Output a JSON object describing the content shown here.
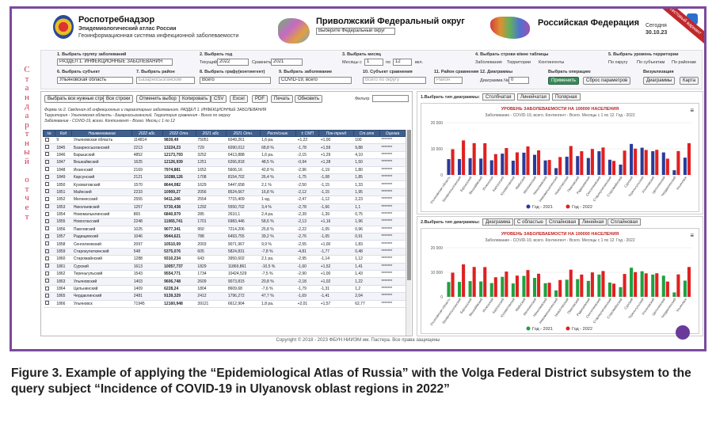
{
  "header": {
    "org_title": "Роспотребнадзор",
    "org_sub1": "Эпидемиологический атлас России",
    "org_sub2": "Геоинформационная система инфекционной заболеваемости",
    "district_title": "Приволжский Федеральный округ",
    "district_select": "Выберите Федеральный округ",
    "country_title": "Российская Федерация",
    "date_label": "Сегодня",
    "date_value": "30.10.23",
    "ribbon": "Тестовый вариант"
  },
  "filters": {
    "f1_label": "1. Выбрать группу заболеваний",
    "f1_value": "РАЗДЕЛ 1. ИНФЕКЦИОННЫЕ ЗАБОЛЕВАНИЯ",
    "f2_label": "2. Выбрать год",
    "f2_value": "Текущий",
    "f2_year": "2022",
    "f2_compare_label": "Сравнить",
    "f2_compare": "2021",
    "f3_label": "3. Выбрать месяц",
    "f3_from_label": "Месяцы с",
    "f3_from": "1",
    "f3_to_label": "по",
    "f3_to": "12",
    "f3_suffix": "вкл.",
    "f4_label": "4. Выбрать строки в/вне таблицы",
    "f4_opt1": "Заболевания",
    "f4_opt2": "Территории",
    "f4_opt3": "Контингенты",
    "f5_label": "5. Выбрать уровень территории",
    "f5_opt1": "По округу",
    "f5_opt2": "По субъектам",
    "f5_opt3": "По районам",
    "f6_label": "6. Выбрать субъект",
    "f6_value": "Ульяновская область",
    "f7_label": "7. Выбрать район",
    "f7_value": "Базарносызганский",
    "f8_label": "8. Выбрать графу(контингент)",
    "f8_value": "Всего",
    "f9_label": "9. Выбрать заболевание",
    "f9_value": "COVID-19, всего",
    "f10_label": "10. Субъект сравнения",
    "f10_value": "Всего по округу",
    "f11_label": "11. Район сравнения",
    "f11_value": "Район",
    "f12_label": "12. Диаграммы",
    "f12_field_label": "Диаграмма №",
    "f12_value": "0",
    "f13_label": "Выбрать операцию",
    "apply_btn": "Применить",
    "reset_btn": "Сброс параметров",
    "f14_label": "Визуализация",
    "diagrams_btn": "Диаграммы",
    "map_btn": "Карта"
  },
  "sidebar_text": "Стандартный отчет",
  "toolbar": {
    "b1": "Выбрать все нужные строки",
    "b2": "Все строки",
    "b3": "Отменить выбор",
    "b4": "Копировать",
    "b5": "CSV",
    "b6": "Excel",
    "b7": "PDF",
    "b8": "Печать",
    "b9": "Обновить",
    "filter_label": "Фильтр"
  },
  "report": {
    "line1": "Форма № 2. Сведения об инфекционных и паразитарных заболеваниях. РАЗДЕЛ 1. ИНФЕКЦИОННЫЕ ЗАБОЛЕВАНИЯ",
    "line2": "Территория - Ульяновская область - Базарносызганский. Территория сравнения - Всего по округу",
    "line3": "Заболевание - COVID-19, всего. Контингент - Всего. Месяц с 1 по 12"
  },
  "table": {
    "headers": [
      "№",
      "Код",
      "Наименование",
      "2022 абс.",
      "2022 Отн.",
      "2021 абс.",
      "2021 Отн.",
      "Рост/сниж.",
      "± СМП",
      "Пок-тренд",
      "Ст.отк",
      "Оценка"
    ],
    "rows": [
      [
        "9",
        "Ульяновская область",
        "114814",
        "9839,49",
        "75051",
        "6049,261",
        "1,6 ра.",
        "+1,22",
        "+1,00",
        "100",
        "*******"
      ],
      [
        "1845",
        "Базарносызганский",
        "2213",
        "13224,23",
        "729",
        "6090,012",
        "68,8 %",
        "-1,78",
        "+1,59",
        "9,88",
        "*******"
      ],
      [
        "1846",
        "Барышский",
        "4852",
        "12173,793",
        "3252",
        "6413,888",
        "1,6 ра.",
        "-2,15",
        "+1,29",
        "4,10",
        "*******"
      ],
      [
        "1847",
        "Вешкаймский",
        "1625",
        "12126,939",
        "1251",
        "6266,818",
        "48,5 %",
        "-0,94",
        "+1,28",
        "1,50",
        "*******"
      ],
      [
        "1848",
        "Инзенский",
        "2169",
        "7974,881",
        "1652",
        "5606,16",
        "42,8 %",
        "-2,96",
        "-1,19",
        "1,80",
        "*******"
      ],
      [
        "1849",
        "Карсунский",
        "2121",
        "10288,126",
        "1708",
        "8154,702",
        "26,4 %",
        "-1,75",
        "-1,08",
        "1,85",
        "*******"
      ],
      [
        "1850",
        "Кузоватовский",
        "1570",
        "8644,082",
        "1629",
        "5447,658",
        "2,1 %",
        "-2,50",
        "-1,15",
        "1,33",
        "*******"
      ],
      [
        "1851",
        "Майнский",
        "2233",
        "10909,27",
        "2056",
        "8524,667",
        "16,8 %",
        "-2,12",
        "-1,15",
        "1,95",
        "*******"
      ],
      [
        "1852",
        "Мелекесский",
        "2555",
        "9411,246",
        "2554",
        "7715,409",
        "1 ед.",
        "-2,47",
        "-1,12",
        "2,23",
        "*******"
      ],
      [
        "1853",
        "Николаевский",
        "1257",
        "5730,438",
        "1292",
        "5550,702",
        "3,4 %",
        "-2,78",
        "-1,66",
        "1,1",
        "*******"
      ],
      [
        "1854",
        "Новомалыклинский",
        "865",
        "6840,979",
        "285",
        "2610,1",
        "2,4 ра.",
        "-2,39",
        "-1,39",
        "0,75",
        "*******"
      ],
      [
        "1855",
        "Новоспасский",
        "2248",
        "11065,741",
        "1701",
        "6983,446",
        "58,6 %",
        "-2,13",
        "+1,16",
        "1,96",
        "*******"
      ],
      [
        "1856",
        "Павловский",
        "1025",
        "9077,341",
        "950",
        "7214,206",
        "25,8 %",
        "-2,22",
        "-1,05",
        "0,96",
        "*******"
      ],
      [
        "1857",
        "Радищевский",
        "1046",
        "9944,621",
        "788",
        "6493,755",
        "39,2 %",
        "-2,76",
        "-1,05",
        "0,91",
        "*******"
      ],
      [
        "1858",
        "Сенгилеевский",
        "2097",
        "10510,09",
        "2003",
        "9071,967",
        "9,9 %",
        "-2,55",
        "+1,00",
        "1,83",
        "*******"
      ],
      [
        "1859",
        "Старокулаткинский",
        "548",
        "5375,076",
        "605",
        "5824,831",
        "-7,8 %",
        "-4,81",
        "-1,77",
        "0,48",
        "*******"
      ],
      [
        "1860",
        "Старомайнский",
        "1288",
        "9310,234",
        "643",
        "3950,602",
        "2,1 ра.",
        "-2,95",
        "-1,14",
        "1,12",
        "*******"
      ],
      [
        "1861",
        "Сурский",
        "1613",
        "10057,737",
        "1829",
        "11869,861",
        "-10,5 %",
        "-1,60",
        "+1,52",
        "1,41",
        "*******"
      ],
      [
        "1862",
        "Тереньгульский",
        "1543",
        "9554,771",
        "1734",
        "10424,529",
        "-7,5 %",
        "-2,90",
        "+1,00",
        "1,43",
        "*******"
      ],
      [
        "1863",
        "Ульяновский",
        "1403",
        "9606,748",
        "2609",
        "9073,815",
        "20,8 %",
        "-2,18",
        "+1,02",
        "1,22",
        "*******"
      ],
      [
        "1864",
        "Цильнинский",
        "1409",
        "6228,24",
        "1804",
        "8609,68",
        "-7,6 %",
        "-1,79",
        "-1,31",
        "1,2",
        "*******"
      ],
      [
        "1865",
        "Чердаклинский",
        "2481",
        "9139,329",
        "2412",
        "1796,272",
        "47,7 %",
        "-1,69",
        "-1,41",
        "2,04",
        "*******"
      ],
      [
        "1866",
        "Ульяновск",
        "71945",
        "12160,948",
        "39121",
        "6612,904",
        "1,8 ра.",
        "+2,01",
        "+1,57",
        "62,77",
        "*******"
      ]
    ]
  },
  "chart1": {
    "panel_label": "1.Выбрать тип диаграммы:",
    "tabs": [
      "Столбчатая",
      "Линейчатая",
      "Полярная"
    ],
    "title": "УРОВЕНЬ ЗАБОЛЕВАЕМОСТИ НА 100000 НАСЕЛЕНИЯ",
    "subtitle": "Заболевание - COVID-19, всего. Контингент - Всего. Месяцы с 1 по 12. Год - 2022",
    "legend": [
      "Год - 2021",
      "Год - 2022"
    ]
  },
  "chart2": {
    "panel_label": "2.Выбрать тип диаграммы:",
    "tabs": [
      "Диаграмма",
      "С областью",
      "Сплайновая",
      "Линейная",
      "Сплайновая"
    ],
    "title": "УРОВЕНЬ ЗАБОЛЕВАЕМОСТИ НА 100000 НАСЕЛЕНИЯ",
    "subtitle": "Заболевание - COVID-19, всего. Контингент - Всего. Месяцы с 1 по 12. Год - 2022",
    "legend": [
      "Год - 2021",
      "Год - 2022"
    ]
  },
  "chart_data": [
    {
      "type": "bar",
      "categories": [
        "Ульяновская область",
        "Базарносызганский",
        "Барышский",
        "Вешкаймский",
        "Инзенский",
        "Карсунский",
        "Кузоватовский",
        "Майнский",
        "Мелекесский",
        "Николаевский",
        "Новомалыклинский",
        "Новоспасский",
        "Павловский",
        "Радищевский",
        "Сенгилеевский",
        "Старокулаткинский",
        "Старомайнский",
        "Сурский",
        "Тереньгульский",
        "Ульяновский",
        "Цильнинский",
        "Чердаклинский",
        "Ульяновск"
      ],
      "series": [
        {
          "name": "Год - 2021",
          "color": "#2a3a9a",
          "values": [
            6049,
            6090,
            6414,
            6267,
            5606,
            8155,
            5448,
            8525,
            7715,
            5551,
            2610,
            6983,
            7214,
            6494,
            9072,
            5825,
            3951,
            11870,
            10425,
            9074,
            8610,
            1796,
            6613
          ]
        },
        {
          "name": "Год - 2022",
          "color": "#e02020",
          "values": [
            9839,
            13224,
            12174,
            12127,
            7975,
            10288,
            8644,
            10909,
            9411,
            5730,
            6841,
            11066,
            9077,
            9945,
            10510,
            5375,
            9310,
            10058,
            9555,
            9607,
            6228,
            9139,
            12161
          ]
        }
      ],
      "ylim": [
        0,
        20000
      ],
      "yticks": [
        "0",
        "10 000",
        "20 000"
      ],
      "legend_position": "bottom"
    },
    {
      "type": "bar",
      "categories": [
        "Ульяновская область",
        "Базарносызганский",
        "Барышский",
        "Вешкаймский",
        "Инзенский",
        "Карсунский",
        "Кузоватовский",
        "Майнский",
        "Мелекесский",
        "Николаевский",
        "Новомалыклинский",
        "Новоспасский",
        "Павловский",
        "Радищевский",
        "Сенгилеевский",
        "Старокулаткинский",
        "Старомайнский",
        "Сурский",
        "Тереньгульский",
        "Ульяновский",
        "Цильнинский",
        "Чердаклинский",
        "Ульяновск"
      ],
      "series": [
        {
          "name": "Год - 2021",
          "color": "#20a040",
          "values": [
            6049,
            6090,
            6414,
            6267,
            5606,
            8155,
            5448,
            8525,
            7715,
            5551,
            2610,
            6983,
            7214,
            6494,
            9072,
            5825,
            3951,
            11870,
            10425,
            9074,
            8610,
            1796,
            6613
          ]
        },
        {
          "name": "Год - 2022",
          "color": "#e02020",
          "values": [
            9839,
            13224,
            12174,
            12127,
            7975,
            10288,
            8644,
            10909,
            9411,
            5730,
            6841,
            11066,
            9077,
            9945,
            10510,
            5375,
            9310,
            10058,
            9555,
            9607,
            6228,
            9139,
            12161
          ]
        }
      ],
      "ylim": [
        0,
        20000
      ],
      "yticks": [
        "0",
        "10 000",
        "20 000"
      ],
      "legend_position": "bottom"
    }
  ],
  "footer": "Copyright © 2018 - 2023 ФБУН НИИЭМ им. Пастера. Все права защищены",
  "caption": "Figure 3. Example of applying the “Epidemiological Atlas of Russia” with the Volga Federal District subsystem to the query subject “Incidence of COVID-19 in Ulyanovsk oblast regions in 2022”"
}
